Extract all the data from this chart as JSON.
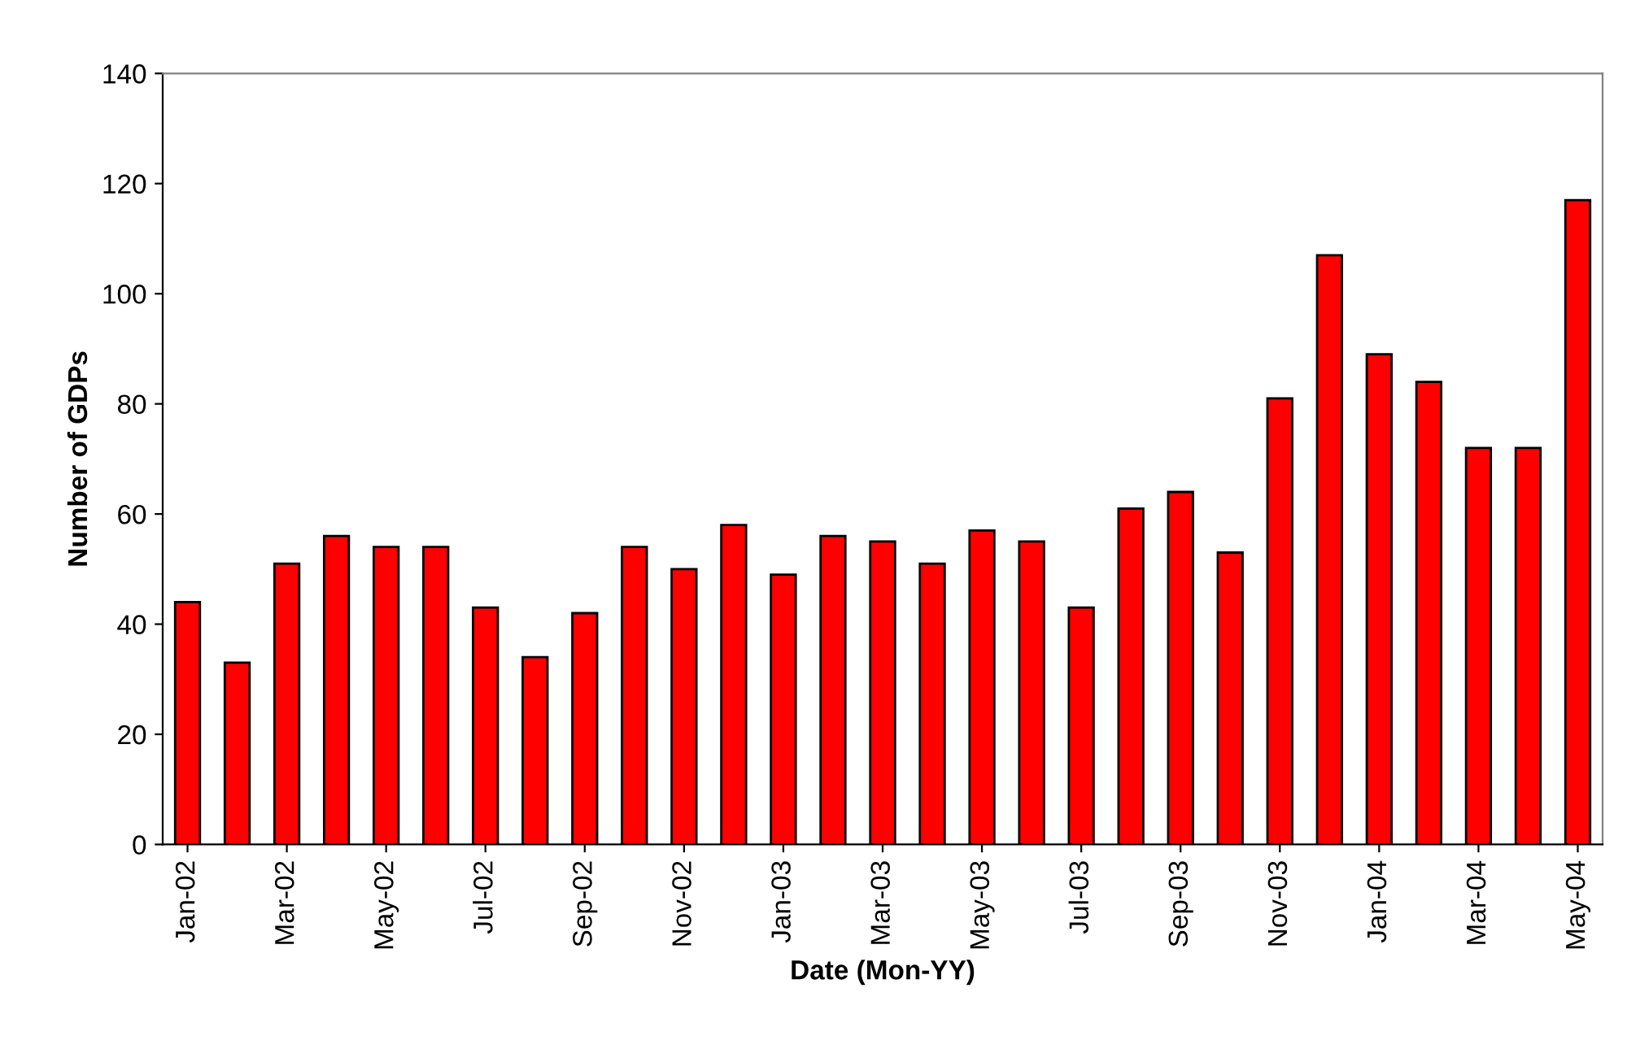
{
  "chart_data": {
    "type": "bar",
    "xlabel": "Date (Mon-YY)",
    "ylabel": "Number of GDPs",
    "categories": [
      "Jan-02",
      null,
      "Mar-02",
      null,
      "May-02",
      null,
      "Jul-02",
      null,
      "Sep-02",
      null,
      "Nov-02",
      null,
      "Jan-03",
      null,
      "Mar-03",
      null,
      "May-03",
      null,
      "Jul-03",
      null,
      "Sep-03",
      null,
      "Nov-03",
      null,
      "Jan-04",
      null,
      "Mar-04",
      null,
      "May-04"
    ],
    "values": [
      44,
      33,
      51,
      56,
      54,
      54,
      43,
      34,
      42,
      54,
      50,
      58,
      49,
      56,
      55,
      51,
      57,
      55,
      43,
      61,
      64,
      53,
      81,
      107,
      89,
      84,
      72,
      72,
      117
    ],
    "color": "#ff0000",
    "ylim": [
      0,
      140
    ],
    "yticks": [
      0,
      20,
      40,
      60,
      80,
      100,
      120,
      140
    ],
    "grid": false,
    "legend": false
  }
}
